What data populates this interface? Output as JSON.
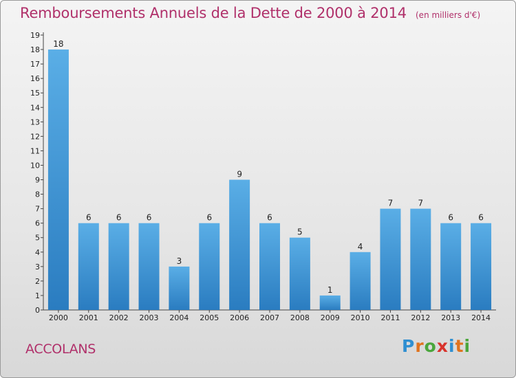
{
  "title": "Remboursements Annuels de la Dette de 2000 à 2014",
  "unit_note": "(en milliers d'€)",
  "place_name": "ACCOLANS",
  "logo": {
    "text": "Proxiti",
    "letter_colors": [
      "#2f8fd1",
      "#e0731e",
      "#4aa63c",
      "#d8332c",
      "#2f8fd1",
      "#e0731e",
      "#4aa63c"
    ]
  },
  "colors": {
    "bar_light": "#5aaee6",
    "bar_dark": "#2a7cc0",
    "accent": "#b0306a"
  },
  "chart_data": {
    "type": "bar",
    "title": "Remboursements Annuels de la Dette de 2000 à 2014",
    "subtitle": "(en milliers d'€)",
    "categories": [
      "2000",
      "2001",
      "2002",
      "2003",
      "2004",
      "2005",
      "2006",
      "2007",
      "2008",
      "2009",
      "2010",
      "2011",
      "2012",
      "2013",
      "2014"
    ],
    "values": [
      18,
      6,
      6,
      6,
      3,
      6,
      9,
      6,
      5,
      1,
      4,
      7,
      7,
      6,
      6
    ],
    "ylim": [
      0,
      19
    ],
    "yticks": [
      0,
      1,
      2,
      3,
      4,
      5,
      6,
      7,
      8,
      9,
      10,
      11,
      12,
      13,
      14,
      15,
      16,
      17,
      18,
      19
    ],
    "grid": false,
    "legend": "none"
  }
}
